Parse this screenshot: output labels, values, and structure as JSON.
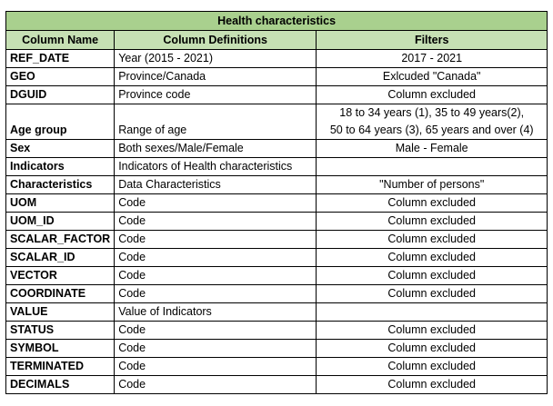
{
  "title": "Health characteristics",
  "headers": [
    "Column Name",
    "Column Definitions",
    "Filters"
  ],
  "rows": [
    {
      "name": "REF_DATE",
      "definition": "Year (2015 - 2021)",
      "filter": "2017 - 2021"
    },
    {
      "name": "GEO",
      "definition": "Province/Canada",
      "filter": "Exlcuded \"Canada\""
    },
    {
      "name": "DGUID",
      "definition": "Province code",
      "filter": "Column excluded"
    },
    {
      "name": "Age group",
      "definition": "Range of age",
      "filter": "",
      "filter_lines": [
        "18 to 34 years (1), 35 to 49 years(2),",
        "50 to 64 years (3),  65 years and over (4)"
      ]
    },
    {
      "name": "Sex",
      "definition": "Both sexes/Male/Female",
      "filter": "Male - Female"
    },
    {
      "name": "Indicators",
      "definition": "Indicators of Health characteristics",
      "filter": ""
    },
    {
      "name": "Characteristics",
      "definition": "Data Characteristics",
      "filter": "\"Number of persons\""
    },
    {
      "name": "UOM",
      "definition": "Code",
      "filter": "Column excluded"
    },
    {
      "name": "UOM_ID",
      "definition": "Code",
      "filter": "Column excluded"
    },
    {
      "name": "SCALAR_FACTOR",
      "definition": "Code",
      "filter": "Column excluded"
    },
    {
      "name": "SCALAR_ID",
      "definition": "Code",
      "filter": "Column excluded"
    },
    {
      "name": "VECTOR",
      "definition": "Code",
      "filter": "Column excluded"
    },
    {
      "name": "COORDINATE",
      "definition": "Code",
      "filter": "Column excluded"
    },
    {
      "name": "VALUE",
      "definition": "Value of Indicators",
      "filter": ""
    },
    {
      "name": "STATUS",
      "definition": "Code",
      "filter": "Column excluded"
    },
    {
      "name": "SYMBOL",
      "definition": "Code",
      "filter": "Column excluded"
    },
    {
      "name": "TERMINATED",
      "definition": "Code",
      "filter": "Column excluded"
    },
    {
      "name": "DECIMALS",
      "definition": "Code",
      "filter": "Column excluded"
    }
  ],
  "colors": {
    "title_fill": "#a9d08e",
    "header_fill": "#c6e0b4",
    "border": "#000000"
  }
}
